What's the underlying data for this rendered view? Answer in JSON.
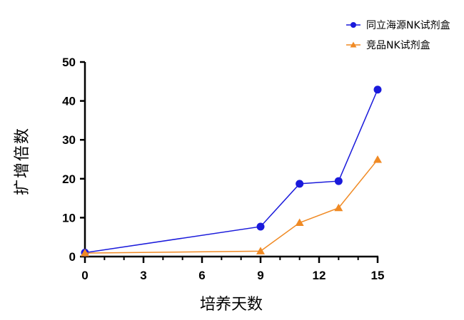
{
  "chart_data": {
    "type": "line",
    "title": "",
    "xlabel": "培养天数",
    "ylabel": "扩增倍数",
    "xlim": [
      0,
      15
    ],
    "ylim": [
      0,
      50
    ],
    "xticks": [
      0,
      3,
      6,
      9,
      12,
      15
    ],
    "xtick_labels": [
      "0",
      "3",
      "6",
      "9",
      "12",
      "15"
    ],
    "yticks": [
      0,
      10,
      20,
      30,
      40,
      50
    ],
    "ytick_labels": [
      "0",
      "10",
      "20",
      "30",
      "40",
      "50"
    ],
    "x_minor_ticks": [
      1,
      2,
      4,
      5,
      7,
      8,
      10,
      11,
      13,
      14
    ],
    "grid": false,
    "legend_position": "top-right",
    "series": [
      {
        "name": "同立海源NK试剂盒",
        "color": "#1a1adb",
        "marker": "circle",
        "x": [
          0,
          9,
          11,
          13,
          15
        ],
        "y": [
          1.0,
          7.7,
          18.7,
          19.4,
          42.9
        ]
      },
      {
        "name": "竞品NK试剂盒",
        "color": "#f08a24",
        "marker": "triangle",
        "x": [
          0,
          9,
          11,
          13,
          15
        ],
        "y": [
          0.9,
          1.4,
          8.7,
          12.5,
          24.9
        ]
      }
    ]
  }
}
